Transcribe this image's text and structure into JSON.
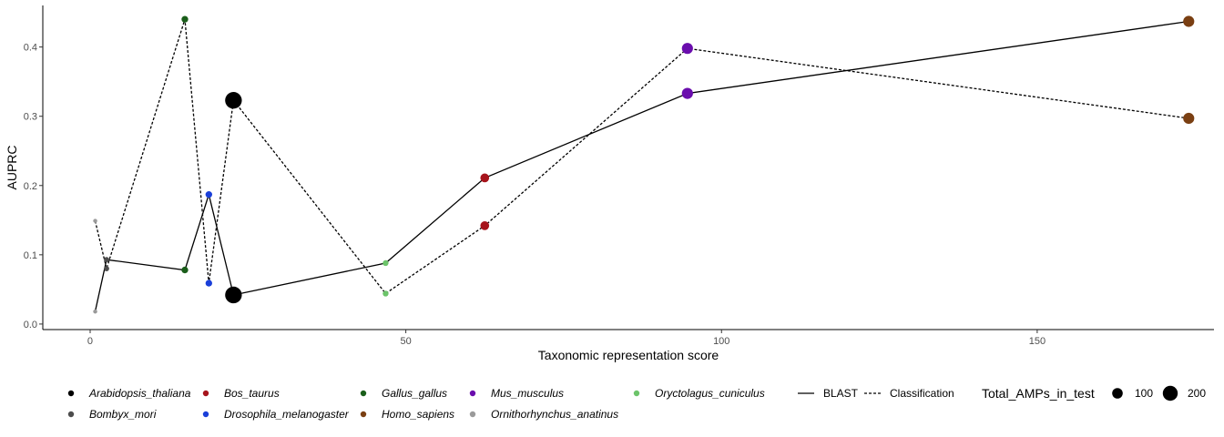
{
  "chart_data": {
    "type": "scatter",
    "xlabel": "Taxonomic representation score",
    "ylabel": "AUPRC",
    "xlim": [
      -7.5,
      178
    ],
    "ylim": [
      -0.008,
      0.46
    ],
    "x_ticks": [
      0,
      50,
      100,
      150
    ],
    "y_ticks": [
      0.0,
      0.1,
      0.2,
      0.3,
      0.4
    ],
    "x_tick_labels": [
      "0",
      "50",
      "100",
      "150"
    ],
    "y_tick_labels": [
      "0.0",
      "0.1",
      "0.2",
      "0.3",
      "0.4"
    ],
    "grid": false,
    "legend_position": "bottom",
    "species": [
      {
        "name": "Arabidopsis_thaliana",
        "color": "#000000",
        "x": 22.7,
        "n": 250,
        "BLAST": 0.042,
        "Classification": 0.323
      },
      {
        "name": "Bombyx_mori",
        "color": "#4d4d4d",
        "x": 2.6,
        "n": 25,
        "BLAST": 0.093,
        "Classification": 0.08
      },
      {
        "name": "Bos_taurus",
        "color": "#a6141c",
        "x": 62.5,
        "n": 70,
        "BLAST": 0.211,
        "Classification": 0.142
      },
      {
        "name": "Drosophila_melanogaster",
        "color": "#1a3fd9",
        "x": 18.8,
        "n": 40,
        "BLAST": 0.187,
        "Classification": 0.059
      },
      {
        "name": "Gallus_gallus",
        "color": "#1a5e1a",
        "x": 15.0,
        "n": 40,
        "BLAST": 0.078,
        "Classification": 0.44
      },
      {
        "name": "Homo_sapiens",
        "color": "#7a3f12",
        "x": 174.0,
        "n": 110,
        "BLAST": 0.437,
        "Classification": 0.297
      },
      {
        "name": "Mus_musculus",
        "color": "#6a0dad",
        "x": 94.6,
        "n": 110,
        "BLAST": 0.333,
        "Classification": 0.398
      },
      {
        "name": "Ornithorhynchus_anatinus",
        "color": "#9a9a9a",
        "x": 0.8,
        "n": 15,
        "BLAST": 0.018,
        "Classification": 0.149
      },
      {
        "name": "Oryctolagus_cuniculus",
        "color": "#6cc46a",
        "x": 46.8,
        "n": 30,
        "BLAST": 0.088,
        "Classification": 0.044
      }
    ],
    "line_order": [
      "Ornithorhynchus_anatinus",
      "Bombyx_mori",
      "Gallus_gallus",
      "Drosophila_melanogaster",
      "Arabidopsis_thaliana",
      "Oryctolagus_cuniculus",
      "Bos_taurus",
      "Mus_musculus",
      "Homo_sapiens"
    ],
    "methods": [
      {
        "name": "BLAST",
        "dash": "solid"
      },
      {
        "name": "Classification",
        "dash": "dotted"
      }
    ],
    "size_legend": {
      "title": "Total_AMPs_in_test",
      "items": [
        {
          "label": "100",
          "n": 100
        },
        {
          "label": "200",
          "n": 200
        }
      ]
    }
  }
}
